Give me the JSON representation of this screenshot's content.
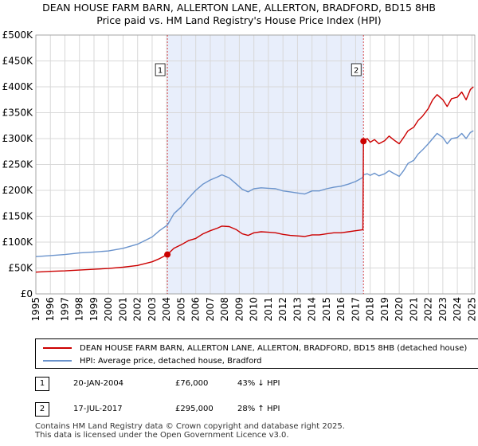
{
  "title": {
    "line1": "DEAN HOUSE FARM BARN, ALLERTON LANE, ALLERTON, BRADFORD, BD15 8HB",
    "line2": "Price paid vs. HM Land Registry's House Price Index (HPI)"
  },
  "colors": {
    "property": "#cc0000",
    "hpi": "#6a93cc",
    "shade": "#e8eefb",
    "grid": "#d8d8d8",
    "vline": "#cc0000"
  },
  "chart_data": {
    "type": "line",
    "title": "Price paid vs. HM Land Registry's House Price Index (HPI)",
    "xlim": [
      1995,
      2025.2
    ],
    "ylim": [
      0,
      500000
    ],
    "x_ticks": [
      1995,
      1996,
      1997,
      1998,
      1999,
      2000,
      2001,
      2002,
      2003,
      2004,
      2005,
      2006,
      2007,
      2008,
      2009,
      2010,
      2011,
      2012,
      2013,
      2014,
      2015,
      2016,
      2017,
      2018,
      2019,
      2020,
      2021,
      2022,
      2023,
      2024,
      2025
    ],
    "x_tick_labels": [
      "1995",
      "1996",
      "1997",
      "1998",
      "1999",
      "2000",
      "2001",
      "2002",
      "2003",
      "2004",
      "2005",
      "2006",
      "2007",
      "2008",
      "2009",
      "2010",
      "2011",
      "2012",
      "2013",
      "2014",
      "2015",
      "2016",
      "2017",
      "2018",
      "2019",
      "2020",
      "2021",
      "2022",
      "2023",
      "2024",
      "2025"
    ],
    "y_ticks": [
      0,
      50000,
      100000,
      150000,
      200000,
      250000,
      300000,
      350000,
      400000,
      450000,
      500000
    ],
    "y_tick_labels": [
      "£0",
      "£50K",
      "£100K",
      "£150K",
      "£200K",
      "£250K",
      "£300K",
      "£350K",
      "£400K",
      "£450K",
      "£500K"
    ],
    "shaded_range": [
      2004.05,
      2017.54
    ],
    "series": [
      {
        "name": "DEAN HOUSE FARM BARN, ALLERTON LANE, ALLERTON, BRADFORD, BD15 8HB (detached house)",
        "color": "#cc0000",
        "x": [
          1995,
          1996,
          1997,
          1998,
          1999,
          2000,
          2001,
          2002,
          2003,
          2003.5,
          2004.05,
          2004.5,
          2005,
          2005.5,
          2006,
          2006.5,
          2007,
          2007.5,
          2007.8,
          2008.3,
          2008.8,
          2009.2,
          2009.6,
          2010,
          2010.5,
          2011,
          2011.5,
          2012,
          2012.5,
          2013,
          2013.5,
          2014,
          2014.5,
          2015,
          2015.5,
          2016,
          2016.5,
          2017,
          2017.5,
          2017.54,
          2017.8,
          2018,
          2018.3,
          2018.6,
          2019,
          2019.3,
          2019.6,
          2020,
          2020.3,
          2020.6,
          2021,
          2021.3,
          2021.6,
          2022,
          2022.3,
          2022.6,
          2023,
          2023.3,
          2023.6,
          2024,
          2024.3,
          2024.6,
          2024.9,
          2025.1
        ],
        "y": [
          42000,
          43500,
          44500,
          46000,
          47500,
          49000,
          51500,
          55000,
          62000,
          68000,
          76000,
          88000,
          95000,
          103000,
          107000,
          116000,
          122000,
          127000,
          131000,
          130000,
          124000,
          116000,
          113000,
          118000,
          120000,
          119000,
          118000,
          115000,
          113000,
          112000,
          111000,
          114000,
          114000,
          116000,
          118000,
          118000,
          120000,
          122000,
          124000,
          295000,
          300000,
          293000,
          298000,
          290000,
          296000,
          305000,
          298000,
          290000,
          302000,
          315000,
          322000,
          335000,
          343000,
          358000,
          375000,
          385000,
          375000,
          362000,
          377000,
          380000,
          390000,
          375000,
          395000,
          400000
        ]
      },
      {
        "name": "HPI: Average price, detached house, Bradford",
        "color": "#6a93cc",
        "x": [
          1995,
          1996,
          1997,
          1998,
          1999,
          2000,
          2001,
          2002,
          2003,
          2003.5,
          2004.05,
          2004.5,
          2005,
          2005.5,
          2006,
          2006.5,
          2007,
          2007.5,
          2007.8,
          2008.3,
          2008.8,
          2009.2,
          2009.6,
          2010,
          2010.5,
          2011,
          2011.5,
          2012,
          2012.5,
          2013,
          2013.5,
          2014,
          2014.5,
          2015,
          2015.5,
          2016,
          2016.5,
          2017,
          2017.5,
          2017.54,
          2017.8,
          2018,
          2018.3,
          2018.6,
          2019,
          2019.3,
          2019.6,
          2020,
          2020.3,
          2020.6,
          2021,
          2021.3,
          2021.6,
          2022,
          2022.3,
          2022.6,
          2023,
          2023.3,
          2023.6,
          2024,
          2024.3,
          2024.6,
          2024.9,
          2025.1
        ],
        "y": [
          72000,
          74000,
          76000,
          79000,
          81000,
          83000,
          88000,
          96000,
          110000,
          122000,
          133000,
          155000,
          168000,
          185000,
          200000,
          212000,
          220000,
          226000,
          230000,
          224000,
          212000,
          202000,
          197000,
          203000,
          205000,
          204000,
          203000,
          199000,
          197000,
          195000,
          193000,
          199000,
          199000,
          203000,
          206000,
          208000,
          212000,
          217000,
          225000,
          230000,
          232000,
          229000,
          233000,
          228000,
          232000,
          238000,
          233000,
          227000,
          238000,
          252000,
          258000,
          270000,
          278000,
          290000,
          300000,
          310000,
          302000,
          290000,
          300000,
          302000,
          310000,
          300000,
          312000,
          315000
        ]
      }
    ],
    "markers": [
      {
        "label": "1",
        "x": 2004.05,
        "y": 76000
      },
      {
        "label": "2",
        "x": 2017.54,
        "y": 295000
      }
    ]
  },
  "legend": {
    "property_label": "DEAN HOUSE FARM BARN, ALLERTON LANE, ALLERTON, BRADFORD, BD15 8HB (detached house)",
    "hpi_label": "HPI: Average price, detached house, Bradford"
  },
  "transactions": [
    {
      "num": "1",
      "date": "20-JAN-2004",
      "price": "£76,000",
      "hpi": "43% ↓ HPI"
    },
    {
      "num": "2",
      "date": "17-JUL-2017",
      "price": "£295,000",
      "hpi": "28% ↑ HPI"
    }
  ],
  "footer": {
    "line1": "Contains HM Land Registry data © Crown copyright and database right 2025.",
    "line2": "This data is licensed under the Open Government Licence v3.0."
  }
}
